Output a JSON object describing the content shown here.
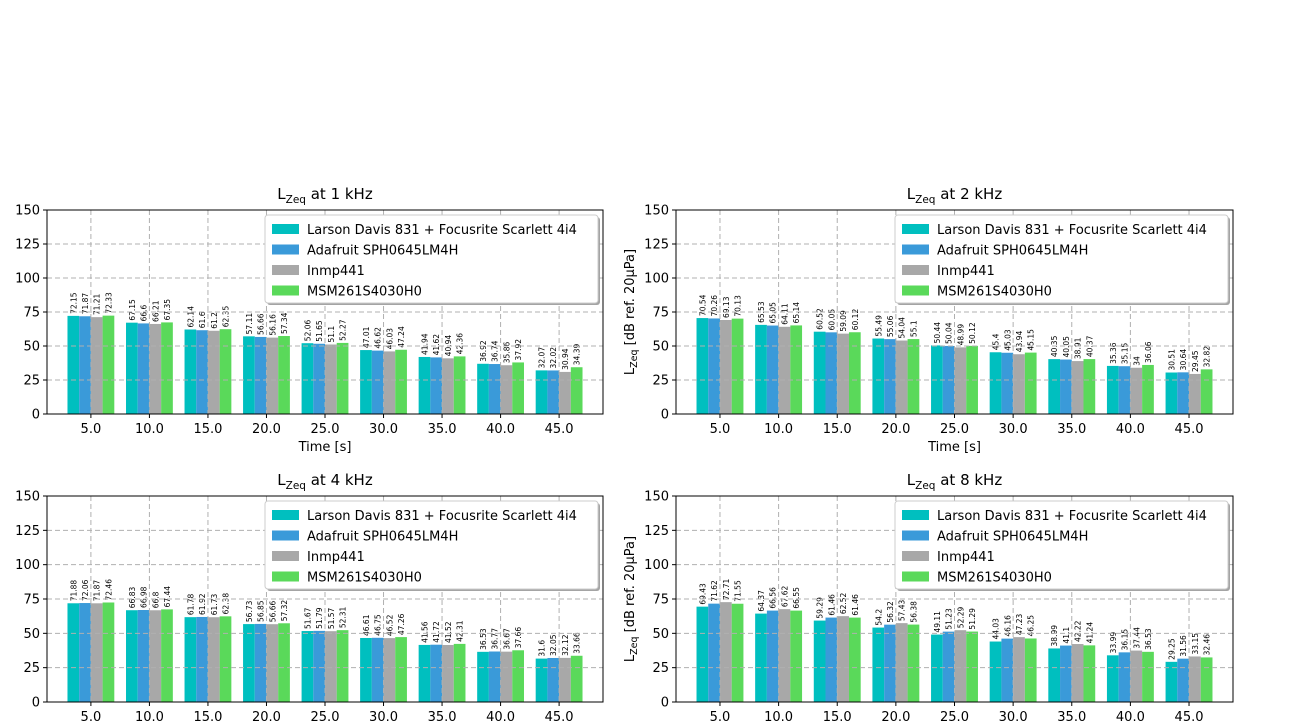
{
  "figure": {
    "legend_colors": [
      "#00bfbf",
      "#3a9ad9",
      "#a8a8a8",
      "#5ad95a"
    ]
  },
  "chart_data": [
    {
      "type": "bar",
      "title": "L_Zeq at 1 kHz",
      "title_main": "L",
      "title_sub": "Zeq",
      "title_rest": " at 1 kHz",
      "xlabel": "Time [s]",
      "ylabel": "",
      "ylim": [
        0,
        150
      ],
      "yticks": [
        "0",
        "25",
        "50",
        "75",
        "100",
        "125",
        "150"
      ],
      "grid": true,
      "legend_position": "top-right",
      "categories": [
        "5.0",
        "10.0",
        "15.0",
        "20.0",
        "25.0",
        "30.0",
        "35.0",
        "40.0",
        "45.0"
      ],
      "series": [
        {
          "name": "Larson Davis 831 + Focusrite Scarlett 4i4",
          "color": "#00bfbf",
          "values": [
            72.15,
            67.15,
            62.14,
            57.11,
            52.06,
            47.01,
            41.94,
            36.92,
            32.07
          ]
        },
        {
          "name": "Adafruit SPH0645LM4H",
          "color": "#3a9ad9",
          "values": [
            71.87,
            66.6,
            61.6,
            56.66,
            51.65,
            46.62,
            41.62,
            36.74,
            32.02
          ]
        },
        {
          "name": "Inmp441",
          "color": "#a8a8a8",
          "values": [
            71.21,
            66.21,
            61.2,
            56.16,
            51.1,
            46.03,
            40.94,
            35.86,
            30.94
          ]
        },
        {
          "name": "MSM261S4030H0",
          "color": "#5ad95a",
          "values": [
            72.33,
            67.35,
            62.35,
            57.34,
            52.27,
            47.24,
            42.36,
            37.92,
            34.39
          ]
        }
      ]
    },
    {
      "type": "bar",
      "title": "L_Zeq at 2 kHz",
      "title_main": "L",
      "title_sub": "Zeq",
      "title_rest": " at 2 kHz",
      "xlabel": "Time [s]",
      "ylabel": "L_Zeq [dB ref. 20µPa]",
      "ylabel_main": "L",
      "ylabel_sub": "Zeq",
      "ylabel_rest": " [dB ref. 20µPa]",
      "ylim": [
        0,
        150
      ],
      "yticks": [
        "0",
        "25",
        "50",
        "75",
        "100",
        "125",
        "150"
      ],
      "grid": true,
      "legend_position": "top-right",
      "categories": [
        "5.0",
        "10.0",
        "15.0",
        "20.0",
        "25.0",
        "30.0",
        "35.0",
        "40.0",
        "45.0"
      ],
      "series": [
        {
          "name": "Larson Davis 831 + Focusrite Scarlett 4i4",
          "color": "#00bfbf",
          "values": [
            70.54,
            65.53,
            60.52,
            55.49,
            50.44,
            45.4,
            40.35,
            35.36,
            30.51
          ]
        },
        {
          "name": "Adafruit SPH0645LM4H",
          "color": "#3a9ad9",
          "values": [
            70.26,
            65.05,
            60.05,
            55.06,
            50.04,
            45.03,
            40.05,
            35.15,
            30.64
          ]
        },
        {
          "name": "Inmp441",
          "color": "#a8a8a8",
          "values": [
            69.13,
            64.11,
            59.09,
            54.04,
            48.99,
            43.94,
            38.91,
            34.0,
            29.45
          ]
        },
        {
          "name": "MSM261S4030H0",
          "color": "#5ad95a",
          "values": [
            70.13,
            65.14,
            60.12,
            55.1,
            50.12,
            45.15,
            40.37,
            36.06,
            32.82
          ]
        }
      ]
    },
    {
      "type": "bar",
      "title": "L_Zeq at 4 kHz",
      "title_main": "L",
      "title_sub": "Zeq",
      "title_rest": " at 4 kHz",
      "xlabel": "",
      "ylabel": "",
      "ylim": [
        0,
        150
      ],
      "yticks": [
        "0",
        "25",
        "50",
        "75",
        "100",
        "125",
        "150"
      ],
      "grid": true,
      "legend_position": "top-right",
      "categories": [
        "5.0",
        "10.0",
        "15.0",
        "20.0",
        "25.0",
        "30.0",
        "35.0",
        "40.0",
        "45.0"
      ],
      "series": [
        {
          "name": "Larson Davis 831 + Focusrite Scarlett 4i4",
          "color": "#00bfbf",
          "values": [
            71.88,
            66.83,
            61.78,
            56.73,
            51.67,
            46.61,
            41.56,
            36.53,
            31.6
          ]
        },
        {
          "name": "Adafruit SPH0645LM4H",
          "color": "#3a9ad9",
          "values": [
            72.06,
            66.98,
            61.92,
            56.85,
            51.79,
            46.75,
            41.72,
            36.77,
            32.05
          ]
        },
        {
          "name": "Inmp441",
          "color": "#a8a8a8",
          "values": [
            71.87,
            66.8,
            61.73,
            56.66,
            51.57,
            46.52,
            41.52,
            36.67,
            32.12
          ]
        },
        {
          "name": "MSM261S4030H0",
          "color": "#5ad95a",
          "values": [
            72.46,
            67.44,
            62.38,
            57.32,
            52.31,
            47.26,
            42.31,
            37.66,
            33.66
          ]
        }
      ]
    },
    {
      "type": "bar",
      "title": "L_Zeq at 8 kHz",
      "title_main": "L",
      "title_sub": "Zeq",
      "title_rest": " at 8 kHz",
      "xlabel": "",
      "ylabel": "L_Zeq [dB ref. 20µPa]",
      "ylabel_main": "L",
      "ylabel_sub": "Zeq",
      "ylabel_rest": " [dB ref. 20µPa]",
      "ylim": [
        0,
        150
      ],
      "yticks": [
        "0",
        "25",
        "50",
        "75",
        "100",
        "125",
        "150"
      ],
      "grid": true,
      "legend_position": "top-right",
      "categories": [
        "5.0",
        "10.0",
        "15.0",
        "20.0",
        "25.0",
        "30.0",
        "35.0",
        "40.0",
        "45.0"
      ],
      "series": [
        {
          "name": "Larson Davis 831 + Focusrite Scarlett 4i4",
          "color": "#00bfbf",
          "values": [
            69.43,
            64.37,
            59.29,
            54.2,
            49.11,
            44.03,
            38.99,
            33.99,
            29.25
          ]
        },
        {
          "name": "Adafruit SPH0645LM4H",
          "color": "#3a9ad9",
          "values": [
            71.62,
            66.56,
            61.46,
            56.32,
            51.23,
            46.16,
            41.1,
            36.15,
            31.56
          ]
        },
        {
          "name": "Inmp441",
          "color": "#a8a8a8",
          "values": [
            72.71,
            67.62,
            62.52,
            57.43,
            52.29,
            47.23,
            42.22,
            37.44,
            33.15
          ]
        },
        {
          "name": "MSM261S4030H0",
          "color": "#5ad95a",
          "values": [
            71.55,
            66.55,
            61.46,
            56.38,
            51.29,
            46.25,
            41.24,
            36.53,
            32.46
          ]
        }
      ]
    }
  ]
}
